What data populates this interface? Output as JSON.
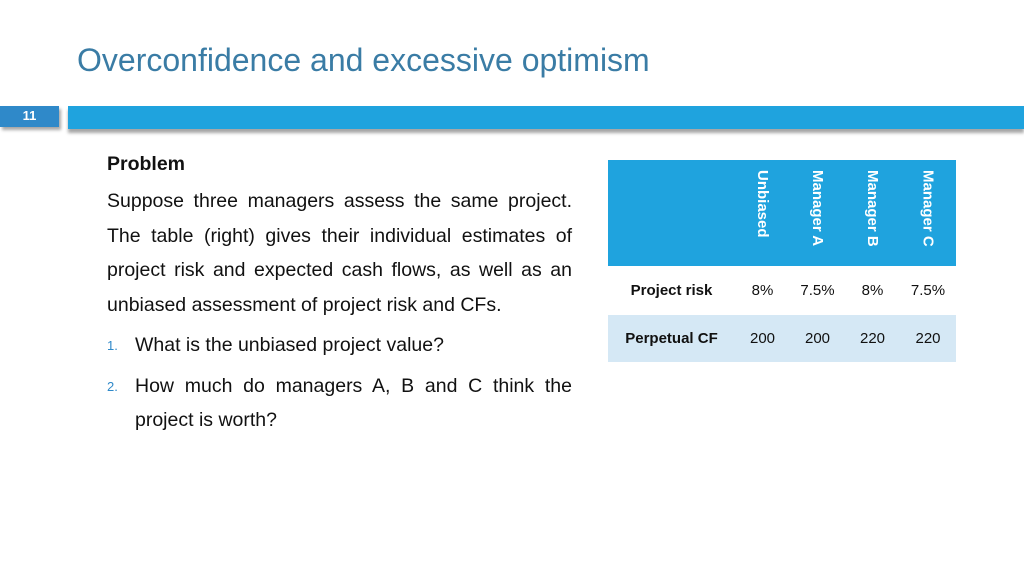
{
  "slide": {
    "title": "Overconfidence and excessive optimism",
    "number": "11"
  },
  "content": {
    "heading": "Problem",
    "paragraph": "Suppose three managers assess the same project. The table (right) gives their individual estimates of project risk and expected cash flows, as well as an unbiased assessment of project risk and CFs.",
    "questions": [
      {
        "num": "1.",
        "text": "What is the unbiased project value?"
      },
      {
        "num": "2.",
        "text": "How much do managers A, B and C think the project is worth?"
      }
    ]
  },
  "table": {
    "columns": [
      "Unbiased",
      "Manager A",
      "Manager B",
      "Manager C"
    ],
    "rows": [
      {
        "label": "Project risk",
        "values": [
          "8%",
          "7.5%",
          "8%",
          "7.5%"
        ]
      },
      {
        "label": "Perpetual CF",
        "values": [
          "200",
          "200",
          "220",
          "220"
        ]
      }
    ]
  },
  "colors": {
    "title": "#3a7ca5",
    "header_bar": "#1fa3de",
    "slide_number_box": "#2f89c9",
    "table_header": "#1fa3de",
    "table_alt_row": "#d5e8f5"
  }
}
